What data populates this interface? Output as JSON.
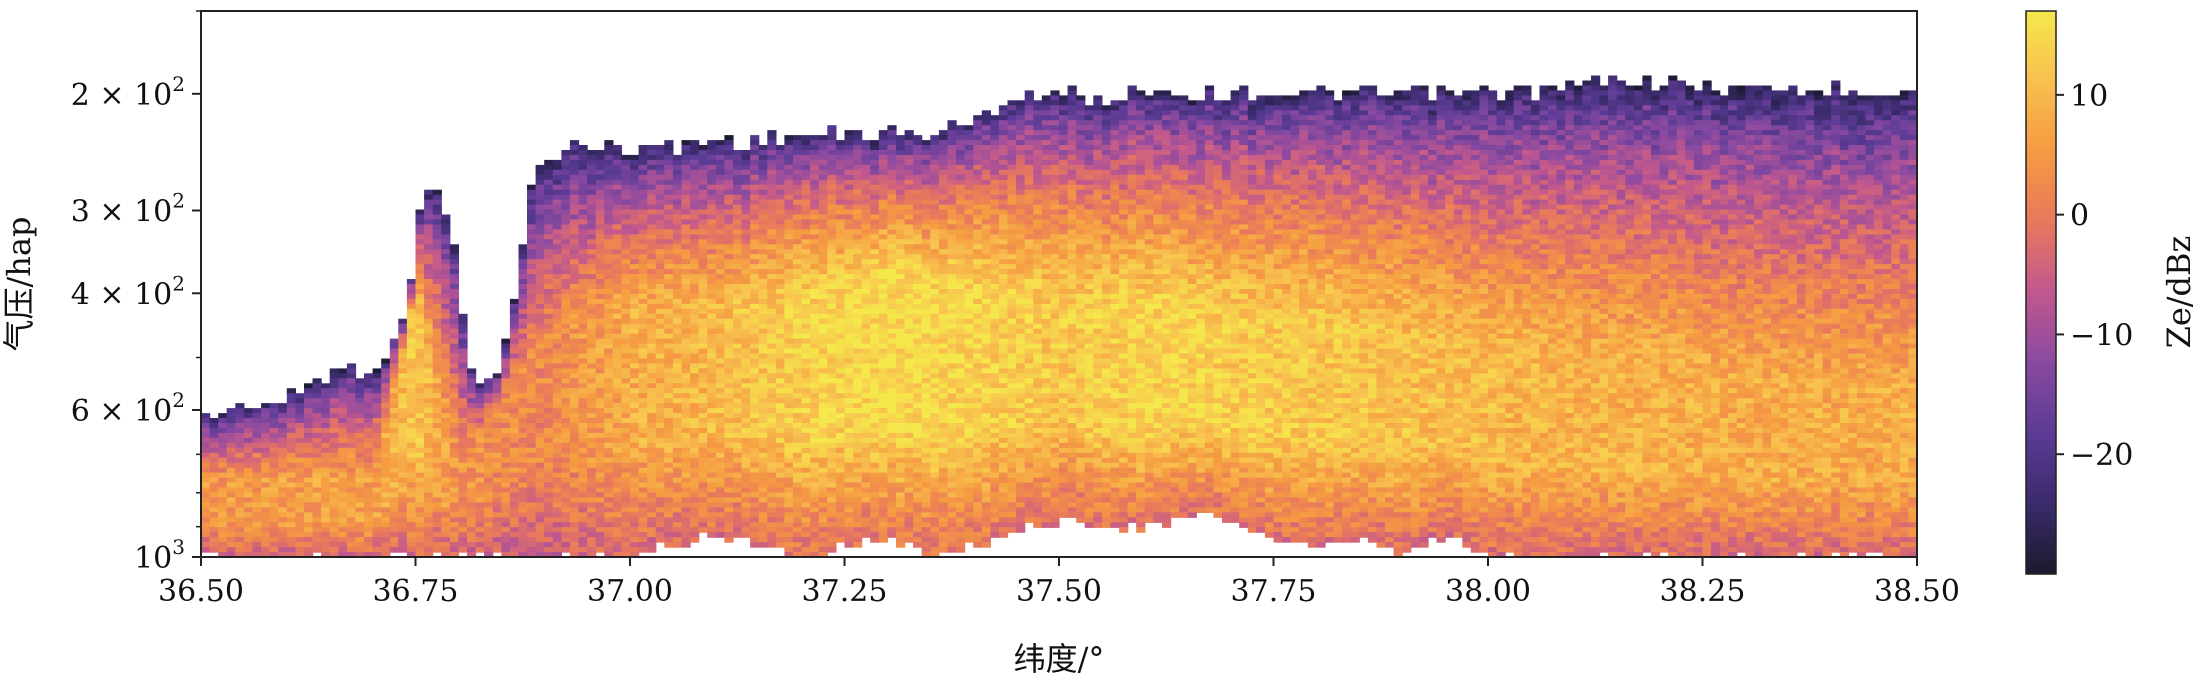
{
  "chart_data": {
    "type": "heatmap",
    "title": "",
    "xlabel": "纬度/°",
    "ylabel": "气压/hap",
    "xlim": [
      36.5,
      38.5
    ],
    "ylim": [
      1000,
      150
    ],
    "y_scale": "log",
    "x_ticks": [
      36.5,
      36.75,
      37.0,
      37.25,
      37.5,
      37.75,
      38.0,
      38.25,
      38.5
    ],
    "x_tick_labels": [
      "36.50",
      "36.75",
      "37.00",
      "37.25",
      "37.50",
      "37.75",
      "38.00",
      "38.25",
      "38.50"
    ],
    "y_ticks": [
      {
        "value": 200,
        "mantissa": "2",
        "base": "10",
        "exp": "2"
      },
      {
        "value": 300,
        "mantissa": "3",
        "base": "10",
        "exp": "2"
      },
      {
        "value": 400,
        "mantissa": "4",
        "base": "10",
        "exp": "2"
      },
      {
        "value": 600,
        "mantissa": "6",
        "base": "10",
        "exp": "2"
      },
      {
        "value": 1000,
        "mantissa": "",
        "base": "10",
        "exp": "3"
      }
    ],
    "colorbar": {
      "label": "Ze/dBz",
      "range": [
        -30,
        17
      ],
      "ticks": [
        10,
        0,
        -10,
        -20
      ],
      "tick_labels": [
        "10",
        "0",
        "−10",
        "−20"
      ],
      "colormap": [
        "#1b1a2e",
        "#3a2a6a",
        "#5b3b95",
        "#8b4aa0",
        "#c0588e",
        "#e8775e",
        "#f59a42",
        "#f8c14e",
        "#f5e84c"
      ]
    },
    "cloud_top_profile": {
      "lat": [
        36.5,
        36.55,
        36.6,
        36.63,
        36.67,
        36.7,
        36.73,
        36.76,
        36.79,
        36.82,
        36.85,
        36.88,
        36.9,
        36.93,
        36.97,
        37.0,
        37.05,
        37.1,
        37.15,
        37.2,
        37.25,
        37.3,
        37.35,
        37.4,
        37.45,
        37.5,
        37.55,
        37.6,
        37.65,
        37.7,
        37.75,
        37.8,
        37.85,
        37.9,
        37.95,
        38.0,
        38.05,
        38.1,
        38.15,
        38.2,
        38.25,
        38.3,
        38.35,
        38.4,
        38.45,
        38.5
      ],
      "top_hpa": [
        620,
        590,
        580,
        540,
        520,
        520,
        470,
        270,
        300,
        560,
        520,
        290,
        250,
        240,
        240,
        240,
        240,
        235,
        235,
        230,
        230,
        230,
        230,
        220,
        200,
        200,
        205,
        195,
        200,
        200,
        198,
        200,
        200,
        200,
        200,
        198,
        198,
        195,
        190,
        192,
        195,
        196,
        196,
        197,
        197,
        198
      ]
    },
    "cloud_base_profile": {
      "lat": [
        36.5,
        36.55,
        36.6,
        36.65,
        36.7,
        36.75,
        36.8,
        36.85,
        36.9,
        36.95,
        37.0,
        37.05,
        37.1,
        37.15,
        37.2,
        37.25,
        37.3,
        37.35,
        37.4,
        37.45,
        37.5,
        37.55,
        37.6,
        37.65,
        37.7,
        37.75,
        37.8,
        37.85,
        37.9,
        37.95,
        38.0,
        38.05,
        38.1,
        38.5
      ],
      "base_hpa": [
        1000,
        1000,
        1000,
        1000,
        1000,
        1000,
        1000,
        1000,
        1000,
        1000,
        1000,
        960,
        920,
        950,
        1000,
        960,
        940,
        1000,
        960,
        920,
        880,
        890,
        900,
        870,
        880,
        940,
        980,
        940,
        990,
        930,
        1000,
        1000,
        1000,
        1000
      ]
    },
    "reflectivity_by_lat": {
      "lat": [
        36.5,
        36.6,
        36.7,
        36.75,
        36.8,
        36.9,
        37.0,
        37.1,
        37.2,
        37.3,
        37.4,
        37.5,
        37.6,
        37.7,
        37.8,
        37.9,
        38.0,
        38.1,
        38.2,
        38.3,
        38.4,
        38.5
      ],
      "core_dbz": [
        5,
        6,
        6,
        12,
        4,
        2,
        8,
        10,
        13,
        15,
        14,
        12,
        14,
        13,
        12,
        11,
        10,
        9,
        9,
        8,
        8,
        8
      ],
      "core_hpa": [
        780,
        760,
        760,
        400,
        720,
        460,
        420,
        420,
        400,
        380,
        390,
        400,
        420,
        430,
        440,
        460,
        480,
        500,
        520,
        540,
        560,
        560
      ]
    }
  }
}
